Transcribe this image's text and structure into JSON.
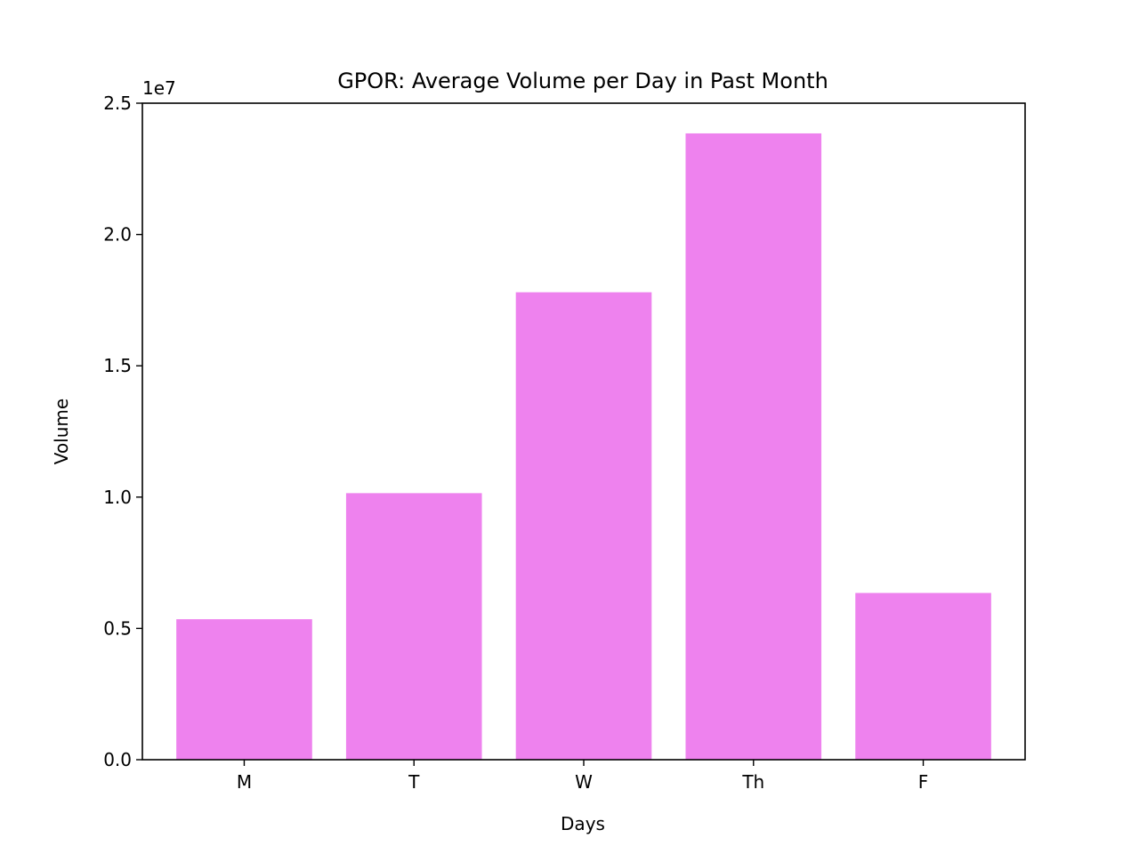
{
  "chart_data": {
    "type": "bar",
    "title": "GPOR: Average Volume per Day in Past Month",
    "xlabel": "Days",
    "ylabel": "Volume",
    "categories": [
      "M",
      "T",
      "W",
      "Th",
      "F"
    ],
    "values": [
      5350000,
      10150000,
      17800000,
      23850000,
      6350000
    ],
    "ylim": [
      0,
      25000000
    ],
    "yticks": [
      0,
      5000000,
      10000000,
      15000000,
      20000000,
      25000000
    ],
    "ytick_labels": [
      "0.0",
      "0.5",
      "1.0",
      "1.5",
      "2.0",
      "2.5"
    ],
    "y_offset_label": "1e7",
    "bar_color": "#ee82ee",
    "grid": false,
    "legend": "none"
  }
}
